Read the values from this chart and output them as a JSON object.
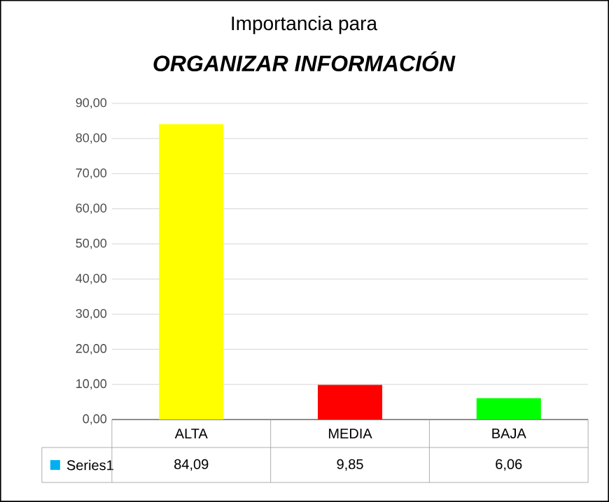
{
  "chart_data": {
    "type": "bar",
    "title": "Importancia para",
    "subtitle": "ORGANIZAR INFORMACIÓN",
    "categories": [
      "ALTA",
      "MEDIA",
      "BAJA"
    ],
    "series": [
      {
        "name": "Series1",
        "color": "#00b0f0",
        "colors": [
          "#ffff00",
          "#ff0000",
          "#00ff00"
        ],
        "values": [
          84.09,
          9.85,
          6.06
        ],
        "value_labels": [
          "84,09",
          "9,85",
          "6,06"
        ]
      }
    ],
    "ylim": [
      0,
      90
    ],
    "yticks": [
      {
        "value": 0,
        "label": "0,00"
      },
      {
        "value": 10,
        "label": "10,00"
      },
      {
        "value": 20,
        "label": "20,00"
      },
      {
        "value": 30,
        "label": "30,00"
      },
      {
        "value": 40,
        "label": "40,00"
      },
      {
        "value": 50,
        "label": "50,00"
      },
      {
        "value": 60,
        "label": "60,00"
      },
      {
        "value": 70,
        "label": "70,00"
      },
      {
        "value": 80,
        "label": "80,00"
      },
      {
        "value": 90,
        "label": "90,00"
      }
    ],
    "grid": "y",
    "legend": "bottom left"
  }
}
